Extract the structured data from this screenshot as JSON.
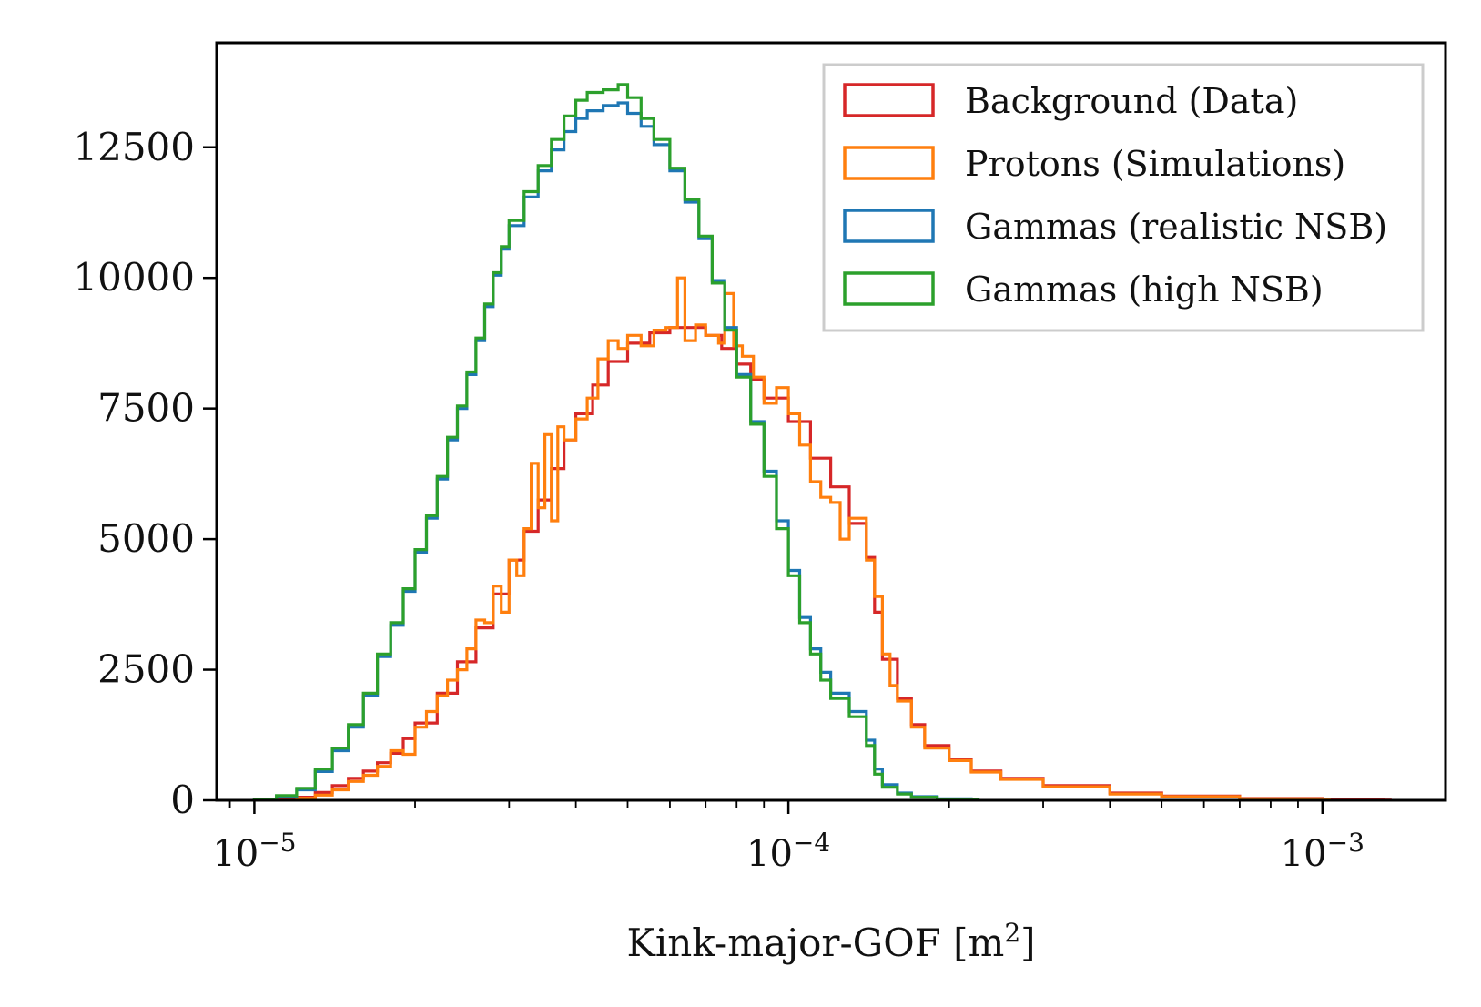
{
  "chart_data": {
    "type": "histogram-step",
    "title": "",
    "xlabel": "Kink-major-GOF [m²]",
    "xlabel_main": "Kink-major-GOF [m",
    "xlabel_sup": "2",
    "xlabel_end": "]",
    "ylabel": "",
    "xscale": "log",
    "xlim": [
      8.5e-06,
      0.0017
    ],
    "ylim": [
      0,
      14500
    ],
    "yticks": [
      {
        "value": 0,
        "label": "0"
      },
      {
        "value": 2500,
        "label": "2500"
      },
      {
        "value": 5000,
        "label": "5000"
      },
      {
        "value": 7500,
        "label": "7500"
      },
      {
        "value": 10000,
        "label": "10000"
      },
      {
        "value": 12500,
        "label": "12500"
      }
    ],
    "xticks": [
      {
        "value": 1e-05,
        "base": "10",
        "exp": "−5"
      },
      {
        "value": 0.0001,
        "base": "10",
        "exp": "−4"
      },
      {
        "value": 0.001,
        "base": "10",
        "exp": "−3"
      }
    ],
    "legend_position": "top-right",
    "series": [
      {
        "name": "Background (Data)",
        "color": "#d62728",
        "points": [
          [
            1e-05,
            0
          ],
          [
            1.1e-05,
            20
          ],
          [
            1.2e-05,
            60
          ],
          [
            1.3e-05,
            150
          ],
          [
            1.4e-05,
            280
          ],
          [
            1.5e-05,
            420
          ],
          [
            1.6e-05,
            560
          ],
          [
            1.7e-05,
            720
          ],
          [
            1.8e-05,
            900
          ],
          [
            1.9e-05,
            1180
          ],
          [
            2e-05,
            1480
          ],
          [
            2.2e-05,
            2050
          ],
          [
            2.4e-05,
            2650
          ],
          [
            2.6e-05,
            3300
          ],
          [
            2.8e-05,
            3950
          ],
          [
            3e-05,
            4600
          ],
          [
            3.2e-05,
            5150
          ],
          [
            3.4e-05,
            5750
          ],
          [
            3.6e-05,
            6350
          ],
          [
            3.8e-05,
            6900
          ],
          [
            4e-05,
            7400
          ],
          [
            4.3e-05,
            7950
          ],
          [
            4.6e-05,
            8400
          ],
          [
            5e-05,
            8750
          ],
          [
            5.5e-05,
            8950
          ],
          [
            6e-05,
            9050
          ],
          [
            6.5e-05,
            9050
          ],
          [
            7e-05,
            8900
          ],
          [
            7.5e-05,
            8650
          ],
          [
            8e-05,
            8350
          ],
          [
            8.5e-05,
            8050
          ],
          [
            9e-05,
            7700
          ],
          [
            0.0001,
            7250
          ],
          [
            0.00011,
            6550
          ],
          [
            0.00012,
            6000
          ],
          [
            0.00013,
            5300
          ],
          [
            0.00014,
            4650
          ],
          [
            0.000145,
            3600
          ],
          [
            0.00015,
            2700
          ],
          [
            0.00016,
            1950
          ],
          [
            0.00017,
            1450
          ],
          [
            0.00018,
            1050
          ],
          [
            0.0002,
            780
          ],
          [
            0.00022,
            560
          ],
          [
            0.00025,
            420
          ],
          [
            0.0003,
            280
          ],
          [
            0.0004,
            140
          ],
          [
            0.0005,
            80
          ],
          [
            0.0007,
            35
          ],
          [
            0.001,
            15
          ],
          [
            0.0013,
            5
          ]
        ]
      },
      {
        "name": "Protons (Simulations)",
        "color": "#ff7f0e",
        "points": [
          [
            1.2e-05,
            40
          ],
          [
            1.3e-05,
            100
          ],
          [
            1.4e-05,
            200
          ],
          [
            1.5e-05,
            360
          ],
          [
            1.6e-05,
            480
          ],
          [
            1.7e-05,
            650
          ],
          [
            1.8e-05,
            950
          ],
          [
            1.9e-05,
            880
          ],
          [
            2e-05,
            1400
          ],
          [
            2.1e-05,
            1700
          ],
          [
            2.2e-05,
            2000
          ],
          [
            2.3e-05,
            2300
          ],
          [
            2.4e-05,
            2500
          ],
          [
            2.5e-05,
            2900
          ],
          [
            2.6e-05,
            3450
          ],
          [
            2.7e-05,
            3400
          ],
          [
            2.8e-05,
            4100
          ],
          [
            2.9e-05,
            3600
          ],
          [
            3e-05,
            4600
          ],
          [
            3.1e-05,
            4300
          ],
          [
            3.2e-05,
            5200
          ],
          [
            3.3e-05,
            6450
          ],
          [
            3.4e-05,
            5600
          ],
          [
            3.5e-05,
            7000
          ],
          [
            3.6e-05,
            5350
          ],
          [
            3.7e-05,
            7150
          ],
          [
            3.8e-05,
            6900
          ],
          [
            4e-05,
            7300
          ],
          [
            4.2e-05,
            7700
          ],
          [
            4.4e-05,
            8450
          ],
          [
            4.6e-05,
            8800
          ],
          [
            4.8e-05,
            8650
          ],
          [
            5e-05,
            8900
          ],
          [
            5.3e-05,
            8700
          ],
          [
            5.6e-05,
            9000
          ],
          [
            5.9e-05,
            9050
          ],
          [
            6.2e-05,
            10000
          ],
          [
            6.4e-05,
            8800
          ],
          [
            6.7e-05,
            9100
          ],
          [
            7e-05,
            8900
          ],
          [
            7.4e-05,
            8750
          ],
          [
            7.6e-05,
            9700
          ],
          [
            7.9e-05,
            8700
          ],
          [
            8.2e-05,
            8500
          ],
          [
            8.6e-05,
            8100
          ],
          [
            9e-05,
            7600
          ],
          [
            9.5e-05,
            7900
          ],
          [
            0.0001,
            7400
          ],
          [
            0.000105,
            6800
          ],
          [
            0.00011,
            6100
          ],
          [
            0.000115,
            5800
          ],
          [
            0.00012,
            5700
          ],
          [
            0.000125,
            5000
          ],
          [
            0.00013,
            5400
          ],
          [
            0.00014,
            4600
          ],
          [
            0.000145,
            3900
          ],
          [
            0.00015,
            2800
          ],
          [
            0.000155,
            2200
          ],
          [
            0.00016,
            1900
          ],
          [
            0.00017,
            1400
          ],
          [
            0.00018,
            1000
          ],
          [
            0.0002,
            760
          ],
          [
            0.00022,
            540
          ],
          [
            0.00025,
            400
          ],
          [
            0.0003,
            260
          ],
          [
            0.0004,
            120
          ],
          [
            0.0005,
            70
          ],
          [
            0.0007,
            30
          ],
          [
            0.001,
            10
          ]
        ]
      },
      {
        "name": "Gammas (realistic NSB)",
        "color": "#1f77b4",
        "points": [
          [
            1e-05,
            20
          ],
          [
            1.1e-05,
            80
          ],
          [
            1.2e-05,
            200
          ],
          [
            1.3e-05,
            550
          ],
          [
            1.4e-05,
            950
          ],
          [
            1.5e-05,
            1400
          ],
          [
            1.6e-05,
            2000
          ],
          [
            1.7e-05,
            2750
          ],
          [
            1.8e-05,
            3350
          ],
          [
            1.9e-05,
            4000
          ],
          [
            2e-05,
            4750
          ],
          [
            2.1e-05,
            5400
          ],
          [
            2.2e-05,
            6150
          ],
          [
            2.3e-05,
            6900
          ],
          [
            2.4e-05,
            7500
          ],
          [
            2.5e-05,
            8150
          ],
          [
            2.6e-05,
            8800
          ],
          [
            2.7e-05,
            9450
          ],
          [
            2.8e-05,
            10050
          ],
          [
            2.9e-05,
            10550
          ],
          [
            3e-05,
            11000
          ],
          [
            3.2e-05,
            11550
          ],
          [
            3.4e-05,
            12050
          ],
          [
            3.6e-05,
            12450
          ],
          [
            3.8e-05,
            12800
          ],
          [
            4e-05,
            13050
          ],
          [
            4.2e-05,
            13200
          ],
          [
            4.5e-05,
            13300
          ],
          [
            4.8e-05,
            13350
          ],
          [
            5e-05,
            13150
          ],
          [
            5.3e-05,
            12900
          ],
          [
            5.6e-05,
            12550
          ],
          [
            6e-05,
            12050
          ],
          [
            6.4e-05,
            11450
          ],
          [
            6.8e-05,
            10750
          ],
          [
            7.2e-05,
            9950
          ],
          [
            7.6e-05,
            9050
          ],
          [
            8e-05,
            8150
          ],
          [
            8.5e-05,
            7250
          ],
          [
            9e-05,
            6300
          ],
          [
            9.5e-05,
            5350
          ],
          [
            0.0001,
            4400
          ],
          [
            0.000105,
            3500
          ],
          [
            0.00011,
            2900
          ],
          [
            0.000115,
            2450
          ],
          [
            0.00012,
            2050
          ],
          [
            0.00013,
            1700
          ],
          [
            0.00014,
            1150
          ],
          [
            0.000145,
            600
          ],
          [
            0.00015,
            300
          ],
          [
            0.00016,
            140
          ],
          [
            0.00017,
            70
          ],
          [
            0.00019,
            30
          ],
          [
            0.00022,
            10
          ]
        ]
      },
      {
        "name": "Gammas (high NSB)",
        "color": "#2ca02c",
        "points": [
          [
            1e-05,
            20
          ],
          [
            1.1e-05,
            90
          ],
          [
            1.2e-05,
            230
          ],
          [
            1.3e-05,
            600
          ],
          [
            1.4e-05,
            1000
          ],
          [
            1.5e-05,
            1450
          ],
          [
            1.6e-05,
            2050
          ],
          [
            1.7e-05,
            2800
          ],
          [
            1.8e-05,
            3400
          ],
          [
            1.9e-05,
            4050
          ],
          [
            2e-05,
            4800
          ],
          [
            2.1e-05,
            5450
          ],
          [
            2.2e-05,
            6200
          ],
          [
            2.3e-05,
            6950
          ],
          [
            2.4e-05,
            7550
          ],
          [
            2.5e-05,
            8200
          ],
          [
            2.6e-05,
            8850
          ],
          [
            2.7e-05,
            9500
          ],
          [
            2.8e-05,
            10100
          ],
          [
            2.9e-05,
            10600
          ],
          [
            3e-05,
            11100
          ],
          [
            3.2e-05,
            11650
          ],
          [
            3.4e-05,
            12150
          ],
          [
            3.6e-05,
            12650
          ],
          [
            3.8e-05,
            13100
          ],
          [
            4e-05,
            13400
          ],
          [
            4.2e-05,
            13550
          ],
          [
            4.5e-05,
            13600
          ],
          [
            4.8e-05,
            13700
          ],
          [
            5e-05,
            13450
          ],
          [
            5.3e-05,
            13050
          ],
          [
            5.6e-05,
            12650
          ],
          [
            6e-05,
            12100
          ],
          [
            6.4e-05,
            11500
          ],
          [
            6.8e-05,
            10800
          ],
          [
            7.2e-05,
            9900
          ],
          [
            7.6e-05,
            9000
          ],
          [
            8e-05,
            8100
          ],
          [
            8.5e-05,
            7200
          ],
          [
            9e-05,
            6200
          ],
          [
            9.5e-05,
            5200
          ],
          [
            0.0001,
            4300
          ],
          [
            0.000105,
            3400
          ],
          [
            0.00011,
            2800
          ],
          [
            0.000115,
            2300
          ],
          [
            0.00012,
            1950
          ],
          [
            0.00013,
            1600
          ],
          [
            0.00014,
            1050
          ],
          [
            0.000145,
            500
          ],
          [
            0.00015,
            250
          ],
          [
            0.00016,
            120
          ],
          [
            0.00017,
            60
          ],
          [
            0.00019,
            25
          ],
          [
            0.00022,
            8
          ]
        ]
      }
    ]
  }
}
